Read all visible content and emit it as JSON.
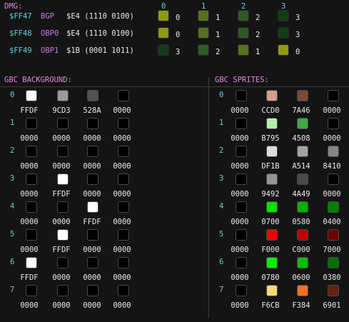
{
  "dmg": {
    "title": "DMG:",
    "column_headers": [
      "0",
      "1",
      "2",
      "3"
    ],
    "registers": [
      {
        "address": "$FF47",
        "name": "BGP",
        "value": "$E4 (1110 0100)",
        "indices": [
          "0",
          "1",
          "2",
          "3"
        ],
        "colors": [
          "#8c9a10",
          "#567020",
          "#2e5a26",
          "#123c16"
        ]
      },
      {
        "address": "$FF48",
        "name": "OBP0",
        "value": "$E4 (1110 0100)",
        "indices": [
          "0",
          "1",
          "2",
          "3"
        ],
        "colors": [
          "#8c9a10",
          "#567020",
          "#2e5a26",
          "#123c16"
        ]
      },
      {
        "address": "$FF49",
        "name": "OBP1",
        "value": "$1B (0001 1011)",
        "indices": [
          "3",
          "2",
          "1",
          "0"
        ],
        "colors": [
          "#123c16",
          "#2e5a26",
          "#567020",
          "#8c9a10"
        ]
      }
    ]
  },
  "gbc_bg": {
    "title": "GBC BACKGROUND:",
    "palettes": [
      {
        "index": "0",
        "colors": [
          {
            "value": "FFDF",
            "color": "#ffffff"
          },
          {
            "value": "9CD3",
            "color": "#9a9a9a"
          },
          {
            "value": "528A",
            "color": "#525252"
          },
          {
            "value": "0000",
            "color": "#000000"
          }
        ]
      },
      {
        "index": "1",
        "colors": [
          {
            "value": "0000",
            "color": "#000000"
          },
          {
            "value": "0000",
            "color": "#000000"
          },
          {
            "value": "0000",
            "color": "#000000"
          },
          {
            "value": "0000",
            "color": "#000000"
          }
        ]
      },
      {
        "index": "2",
        "colors": [
          {
            "value": "0000",
            "color": "#000000"
          },
          {
            "value": "0000",
            "color": "#000000"
          },
          {
            "value": "0000",
            "color": "#000000"
          },
          {
            "value": "0000",
            "color": "#000000"
          }
        ]
      },
      {
        "index": "3",
        "colors": [
          {
            "value": "0000",
            "color": "#000000"
          },
          {
            "value": "FFDF",
            "color": "#ffffff"
          },
          {
            "value": "0000",
            "color": "#000000"
          },
          {
            "value": "0000",
            "color": "#000000"
          }
        ]
      },
      {
        "index": "4",
        "colors": [
          {
            "value": "0000",
            "color": "#000000"
          },
          {
            "value": "0000",
            "color": "#000000"
          },
          {
            "value": "FFDF",
            "color": "#ffffff"
          },
          {
            "value": "0000",
            "color": "#000000"
          }
        ]
      },
      {
        "index": "5",
        "colors": [
          {
            "value": "0000",
            "color": "#000000"
          },
          {
            "value": "FFDF",
            "color": "#ffffff"
          },
          {
            "value": "0000",
            "color": "#000000"
          },
          {
            "value": "0000",
            "color": "#000000"
          }
        ]
      },
      {
        "index": "6",
        "colors": [
          {
            "value": "FFDF",
            "color": "#ffffff"
          },
          {
            "value": "0000",
            "color": "#000000"
          },
          {
            "value": "0000",
            "color": "#000000"
          },
          {
            "value": "0000",
            "color": "#000000"
          }
        ]
      },
      {
        "index": "7",
        "colors": [
          {
            "value": "0000",
            "color": "#000000"
          },
          {
            "value": "0000",
            "color": "#000000"
          },
          {
            "value": "0000",
            "color": "#000000"
          },
          {
            "value": "0000",
            "color": "#000000"
          }
        ]
      }
    ]
  },
  "gbc_sprites": {
    "title": "GBC SPRITES:",
    "palettes": [
      {
        "index": "0",
        "colors": [
          {
            "value": "0000",
            "color": "#000000"
          },
          {
            "value": "CCD0",
            "color": "#d0a08a"
          },
          {
            "value": "7A46",
            "color": "#7a4a36"
          },
          {
            "value": "0000",
            "color": "#000000"
          }
        ]
      },
      {
        "index": "1",
        "colors": [
          {
            "value": "0000",
            "color": "#000000"
          },
          {
            "value": "B795",
            "color": "#b0f0a8"
          },
          {
            "value": "4508",
            "color": "#42a842"
          },
          {
            "value": "0000",
            "color": "#000000"
          }
        ]
      },
      {
        "index": "2",
        "colors": [
          {
            "value": "0000",
            "color": "#000000"
          },
          {
            "value": "DF1B",
            "color": "#dcdcdc"
          },
          {
            "value": "A514",
            "color": "#a4a4a4"
          },
          {
            "value": "8410",
            "color": "#848484"
          }
        ]
      },
      {
        "index": "3",
        "colors": [
          {
            "value": "0000",
            "color": "#000000"
          },
          {
            "value": "9492",
            "color": "#949494"
          },
          {
            "value": "4A49",
            "color": "#4a4a4a"
          },
          {
            "value": "0000",
            "color": "#000000"
          }
        ]
      },
      {
        "index": "4",
        "colors": [
          {
            "value": "0000",
            "color": "#000000"
          },
          {
            "value": "0700",
            "color": "#00e000"
          },
          {
            "value": "0580",
            "color": "#00b000"
          },
          {
            "value": "0400",
            "color": "#008000"
          }
        ]
      },
      {
        "index": "5",
        "colors": [
          {
            "value": "0000",
            "color": "#000000"
          },
          {
            "value": "F000",
            "color": "#f00000"
          },
          {
            "value": "C000",
            "color": "#c00000"
          },
          {
            "value": "7000",
            "color": "#700000"
          }
        ]
      },
      {
        "index": "6",
        "colors": [
          {
            "value": "0000",
            "color": "#000000"
          },
          {
            "value": "0780",
            "color": "#00f000"
          },
          {
            "value": "0600",
            "color": "#00c000"
          },
          {
            "value": "0380",
            "color": "#007000"
          }
        ]
      },
      {
        "index": "7",
        "colors": [
          {
            "value": "0000",
            "color": "#000000"
          },
          {
            "value": "F6CB",
            "color": "#f8d870"
          },
          {
            "value": "F384",
            "color": "#f87020"
          },
          {
            "value": "6901",
            "color": "#682010"
          }
        ]
      }
    ]
  }
}
